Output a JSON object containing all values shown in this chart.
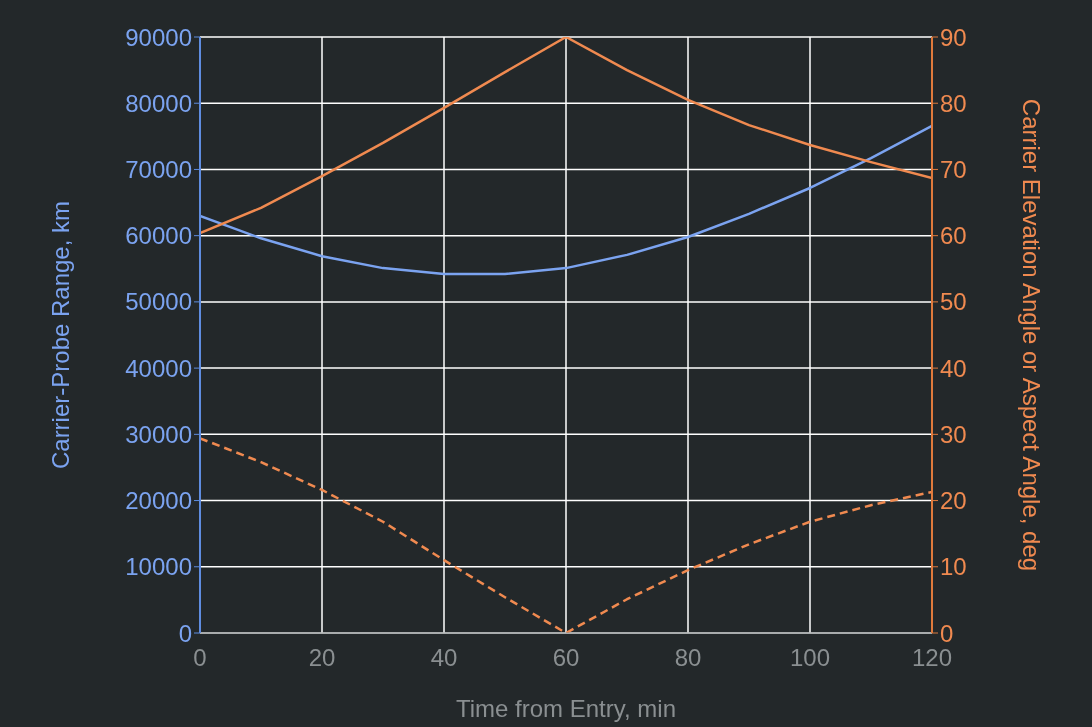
{
  "chart_data": {
    "type": "line",
    "xlabel": "Time from Entry, min",
    "ylabel": "Carrier-Probe Range, km",
    "y2label": "Carrier Elevation Angle or Aspect Angle, deg",
    "x": [
      0,
      10,
      20,
      30,
      40,
      50,
      60,
      70,
      80,
      90,
      100,
      110,
      120
    ],
    "series": [
      {
        "color": "#7ba3f0",
        "line_style": "solid",
        "values": [
          63000,
          59600,
          56900,
          55100,
          54200,
          54200,
          55100,
          57100,
          59800,
          63300,
          67200,
          71700,
          76600
        ]
      },
      {
        "color": "#f08a50",
        "axis": "y2",
        "line_style": "solid",
        "values": [
          60.4,
          64.2,
          69,
          74,
          79.3,
          84.7,
          90,
          85,
          80.5,
          76.7,
          73.7,
          71.1,
          68.7
        ]
      },
      {
        "color": "#f08a50",
        "axis": "y2",
        "line_style": "dashed",
        "values": [
          29.4,
          25.8,
          21.6,
          16.8,
          11,
          5.4,
          0,
          5.1,
          9.5,
          13.4,
          16.8,
          19.3,
          21.3
        ]
      }
    ],
    "xlim": [
      0,
      120
    ],
    "xticks": [
      0,
      20,
      40,
      60,
      80,
      100,
      120
    ],
    "ylim": [
      0,
      90000
    ],
    "yticks": [
      0,
      10000,
      20000,
      30000,
      40000,
      50000,
      60000,
      70000,
      80000,
      90000
    ],
    "y2lim": [
      0,
      90
    ],
    "y2ticks": [
      0,
      10,
      20,
      30,
      40,
      50,
      60,
      70,
      80,
      90
    ],
    "grid": true,
    "marker": "none"
  }
}
